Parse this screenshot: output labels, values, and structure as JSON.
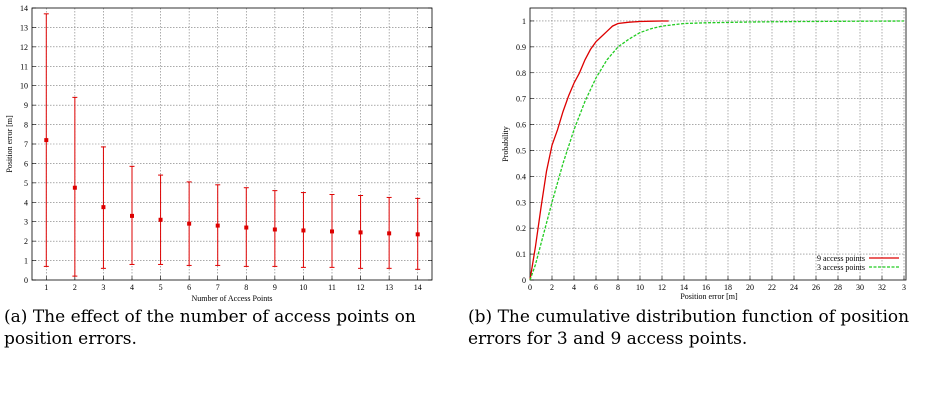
{
  "captions": {
    "left_prefix": "(a)",
    "left_text": "The effect of the number of access points on position errors.",
    "right_prefix": "(b)",
    "right_text": "The cumulative distribution function of position errors for 3 and 9 access points."
  },
  "chart_data": [
    {
      "type": "scatter",
      "error_bars": true,
      "title": "",
      "xlabel": "Number of Access Points",
      "ylabel": "Position error [m]",
      "xlim": [
        0.5,
        14.5
      ],
      "ylim": [
        0,
        14
      ],
      "x_ticks": [
        "1",
        "2",
        "3",
        "4",
        "5",
        "6",
        "7",
        "8",
        "9",
        "10",
        "11",
        "12",
        "13",
        "14"
      ],
      "y_ticks": [
        "0",
        "1",
        "2",
        "3",
        "4",
        "5",
        "6",
        "7",
        "8",
        "9",
        "10",
        "11",
        "12",
        "13",
        "14"
      ],
      "grid": true,
      "colors": {
        "series": "#dd0000",
        "grid": "#777777"
      },
      "points": [
        {
          "x": 1,
          "y": 7.2,
          "low": 0.7,
          "high": 13.7
        },
        {
          "x": 2,
          "y": 4.75,
          "low": 0.2,
          "high": 9.4
        },
        {
          "x": 3,
          "y": 3.75,
          "low": 0.6,
          "high": 6.85
        },
        {
          "x": 4,
          "y": 3.3,
          "low": 0.8,
          "high": 5.85
        },
        {
          "x": 5,
          "y": 3.1,
          "low": 0.8,
          "high": 5.4
        },
        {
          "x": 6,
          "y": 2.9,
          "low": 0.75,
          "high": 5.05
        },
        {
          "x": 7,
          "y": 2.8,
          "low": 0.75,
          "high": 4.9
        },
        {
          "x": 8,
          "y": 2.7,
          "low": 0.7,
          "high": 4.75
        },
        {
          "x": 9,
          "y": 2.6,
          "low": 0.7,
          "high": 4.6
        },
        {
          "x": 10,
          "y": 2.55,
          "low": 0.65,
          "high": 4.5
        },
        {
          "x": 11,
          "y": 2.5,
          "low": 0.65,
          "high": 4.4
        },
        {
          "x": 12,
          "y": 2.45,
          "low": 0.6,
          "high": 4.35
        },
        {
          "x": 13,
          "y": 2.4,
          "low": 0.6,
          "high": 4.25
        },
        {
          "x": 14,
          "y": 2.35,
          "low": 0.55,
          "high": 4.2
        }
      ]
    },
    {
      "type": "line",
      "title": "",
      "xlabel": "Position error [m]",
      "ylabel": "Probability",
      "xlim": [
        0,
        34
      ],
      "ylim": [
        0,
        1.05
      ],
      "x_ticks": [
        "0",
        "2",
        "4",
        "6",
        "8",
        "10",
        "12",
        "14",
        "16",
        "18",
        "20",
        "22",
        "24",
        "26",
        "28",
        "30",
        "32",
        "3"
      ],
      "y_ticks": [
        "0",
        "0.1",
        "0.2",
        "0.3",
        "0.4",
        "0.5",
        "0.6",
        "0.7",
        "0.8",
        "0.9",
        "1"
      ],
      "grid": true,
      "legend_position": "bottom-right",
      "series": [
        {
          "name": "9 access points",
          "color": "#dd0000",
          "dashed": false,
          "x": [
            0,
            0.5,
            1,
            1.5,
            2,
            2.5,
            3,
            3.5,
            4,
            4.5,
            5,
            5.5,
            6,
            6.5,
            7,
            7.5,
            8,
            9,
            10,
            11,
            12,
            12.6
          ],
          "y": [
            0,
            0.13,
            0.28,
            0.42,
            0.52,
            0.58,
            0.65,
            0.71,
            0.76,
            0.8,
            0.85,
            0.89,
            0.92,
            0.94,
            0.96,
            0.98,
            0.99,
            0.995,
            0.998,
            0.999,
            1.0,
            1.0
          ]
        },
        {
          "name": "3 access points",
          "color": "#22cc22",
          "dashed": true,
          "x": [
            0,
            0.5,
            1,
            2,
            3,
            4,
            5,
            6,
            7,
            8,
            9,
            10,
            11,
            12,
            14,
            16,
            20,
            25,
            30,
            34
          ],
          "y": [
            0,
            0.06,
            0.14,
            0.3,
            0.45,
            0.58,
            0.69,
            0.78,
            0.85,
            0.9,
            0.93,
            0.955,
            0.97,
            0.98,
            0.99,
            0.993,
            0.996,
            0.998,
            0.999,
            1.0
          ]
        }
      ]
    }
  ]
}
